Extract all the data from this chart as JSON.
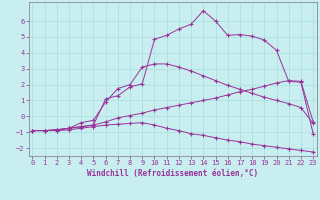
{
  "xlabel": "Windchill (Refroidissement éolien,°C)",
  "bg_color": "#c8eef0",
  "line_color": "#993399",
  "grid_color": "#a8dde0",
  "x_values": [
    0,
    1,
    2,
    3,
    4,
    5,
    6,
    7,
    8,
    9,
    10,
    11,
    12,
    13,
    14,
    15,
    16,
    17,
    18,
    19,
    20,
    21,
    22,
    23
  ],
  "series": [
    [
      -0.9,
      -0.9,
      -0.85,
      -0.75,
      -0.65,
      -0.55,
      1.1,
      1.3,
      1.85,
      2.05,
      4.85,
      5.1,
      5.5,
      5.8,
      6.65,
      6.0,
      5.1,
      5.15,
      5.05,
      4.8,
      4.15,
      2.2,
      2.15,
      -1.1
    ],
    [
      -0.9,
      -0.9,
      -0.85,
      -0.75,
      -0.4,
      -0.25,
      0.9,
      1.75,
      2.0,
      3.1,
      3.3,
      3.3,
      3.1,
      2.85,
      2.55,
      2.25,
      1.95,
      1.7,
      1.45,
      1.2,
      1.0,
      0.8,
      0.55,
      -0.45
    ],
    [
      -0.9,
      -0.9,
      -0.85,
      -0.75,
      -0.65,
      -0.55,
      -0.35,
      -0.1,
      0.05,
      0.2,
      0.4,
      0.55,
      0.7,
      0.85,
      1.0,
      1.15,
      1.35,
      1.55,
      1.7,
      1.9,
      2.1,
      2.25,
      2.2,
      -0.35
    ],
    [
      -0.9,
      -0.9,
      -0.9,
      -0.85,
      -0.75,
      -0.65,
      -0.55,
      -0.5,
      -0.45,
      -0.4,
      -0.55,
      -0.75,
      -0.9,
      -1.1,
      -1.2,
      -1.35,
      -1.5,
      -1.6,
      -1.75,
      -1.85,
      -1.95,
      -2.05,
      -2.15,
      -2.25
    ]
  ],
  "ylim": [
    -2.5,
    7.2
  ],
  "xlim": [
    -0.3,
    23.3
  ],
  "yticks": [
    -2,
    -1,
    0,
    1,
    2,
    3,
    4,
    5,
    6
  ],
  "xticks": [
    0,
    1,
    2,
    3,
    4,
    5,
    6,
    7,
    8,
    9,
    10,
    11,
    12,
    13,
    14,
    15,
    16,
    17,
    18,
    19,
    20,
    21,
    22,
    23
  ]
}
